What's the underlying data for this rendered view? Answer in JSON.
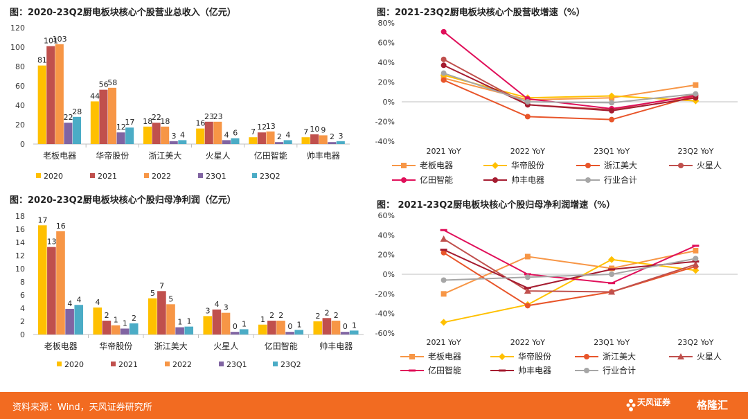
{
  "charts": [
    {
      "id": "revenue",
      "type": "bar",
      "title": "图：2020-23Q2厨电板块核心个股营业总收入（亿元）",
      "categories": [
        "老板电器",
        "华帝股份",
        "浙江美大",
        "火星人",
        "亿田智能",
        "帅丰电器"
      ],
      "ylim": [
        0,
        120
      ],
      "yticks": [
        "0",
        "20",
        "40",
        "60",
        "80",
        "100",
        "120"
      ],
      "series": [
        {
          "name": "2020",
          "color": "#ffc000",
          "values": [
            81,
            44,
            18,
            16,
            7,
            7
          ]
        },
        {
          "name": "2021",
          "color": "#c0504d",
          "values": [
            101,
            56,
            22,
            23,
            12,
            10
          ]
        },
        {
          "name": "2022",
          "color": "#f79646",
          "values": [
            103,
            58,
            18,
            23,
            13,
            9
          ]
        },
        {
          "name": "23Q1",
          "color": "#8064a2",
          "values": [
            22,
            12,
            3,
            4,
            2,
            2
          ]
        },
        {
          "name": "23Q2",
          "color": "#4bacc6",
          "values": [
            28,
            17,
            4,
            6,
            4,
            3
          ]
        }
      ]
    },
    {
      "id": "profit",
      "type": "bar",
      "title": "图：2020-23Q2厨电板块核心个股归母净利润（亿元）",
      "categories": [
        "老板电器",
        "华帝股份",
        "浙江美大",
        "火星人",
        "亿田智能",
        "帅丰电器"
      ],
      "ylim": [
        0,
        18
      ],
      "yticks": [
        "0",
        "2",
        "4",
        "6",
        "8",
        "10",
        "12",
        "14",
        "16",
        "18"
      ],
      "series": [
        {
          "name": "2020",
          "color": "#ffc000",
          "values": [
            17,
            4,
            5,
            3,
            1,
            2
          ]
        },
        {
          "name": "2021",
          "color": "#c0504d",
          "values": [
            13,
            2,
            7,
            4,
            2,
            2
          ]
        },
        {
          "name": "2022",
          "color": "#f79646",
          "values": [
            16,
            1,
            5,
            3,
            2,
            2
          ]
        },
        {
          "name": "23Q1",
          "color": "#8064a2",
          "values": [
            4,
            1,
            1,
            0,
            0,
            0
          ]
        },
        {
          "name": "23Q2",
          "color": "#4bacc6",
          "values": [
            4,
            2,
            1,
            1,
            1,
            1
          ]
        }
      ],
      "plot_values": [
        [
          16.6,
          4.1,
          5.5,
          2.8,
          1.5,
          2.0
        ],
        [
          13.3,
          2.1,
          6.6,
          3.8,
          2.1,
          2.5
        ],
        [
          15.7,
          1.4,
          4.6,
          3.3,
          2.1,
          2.1
        ],
        [
          3.9,
          0.9,
          1.1,
          0.4,
          0.4,
          0.4
        ],
        [
          4.5,
          1.7,
          1.2,
          0.8,
          0.7,
          0.6
        ]
      ]
    },
    {
      "id": "revenue_growth",
      "type": "line",
      "title": "图：2021-23Q2厨电板块核心个股营收增速（%）",
      "categories": [
        "2021 YoY",
        "2022 YoY",
        "23Q1 YoY",
        "23Q2 YoY"
      ],
      "ylim": [
        -40,
        80
      ],
      "yticks": [
        "-40%",
        "-20%",
        "0%",
        "20%",
        "40%",
        "60%",
        "80%"
      ],
      "series": [
        {
          "name": "老板电器",
          "color": "#f79646",
          "marker": "square",
          "values": [
            24,
            2,
            4,
            17
          ]
        },
        {
          "name": "华帝股份",
          "color": "#ffc000",
          "marker": "diamond",
          "values": [
            27,
            4,
            6,
            1
          ]
        },
        {
          "name": "浙江美大",
          "color": "#e8552a",
          "marker": "circle",
          "values": [
            22,
            -15,
            -18,
            6
          ]
        },
        {
          "name": "火星人",
          "color": "#c0504d",
          "marker": "circle",
          "values": [
            43,
            -3,
            -8,
            7
          ]
        },
        {
          "name": "亿田智能",
          "color": "#e0105a",
          "marker": "circle",
          "values": [
            71,
            3,
            -7,
            6
          ]
        },
        {
          "name": "帅丰电器",
          "color": "#a51c30",
          "marker": "circle",
          "values": [
            37,
            -3,
            -9,
            4
          ]
        },
        {
          "name": "行业合计",
          "color": "#a6a6a6",
          "marker": "circle",
          "values": [
            29,
            0,
            -1,
            8
          ]
        }
      ]
    },
    {
      "id": "profit_growth",
      "type": "line",
      "title": "图：  2021-23Q2厨电板块核心个股归母净利润增速（%）",
      "categories": [
        "2021 YoY",
        "2022 YoY",
        "23Q1 YoY",
        "23Q2 YoY"
      ],
      "ylim": [
        -60,
        60
      ],
      "yticks": [
        "-60%",
        "-40%",
        "-20%",
        "0%",
        "20%",
        "40%",
        "60%"
      ],
      "series": [
        {
          "name": "老板电器",
          "color": "#f79646",
          "marker": "square",
          "values": [
            -20,
            18,
            6,
            24
          ]
        },
        {
          "name": "华帝股份",
          "color": "#ffc000",
          "marker": "diamond",
          "values": [
            -49,
            -31,
            15,
            4
          ]
        },
        {
          "name": "浙江美大",
          "color": "#e8552a",
          "marker": "circle",
          "values": [
            22,
            -32,
            -18,
            8
          ]
        },
        {
          "name": "火星人",
          "color": "#c0504d",
          "marker": "triangle",
          "values": [
            36,
            -17,
            -18,
            10
          ]
        },
        {
          "name": "亿田智能",
          "color": "#e0105a",
          "marker": "dash",
          "values": [
            45,
            0,
            -9,
            29
          ]
        },
        {
          "name": "帅丰电器",
          "color": "#a51c30",
          "marker": "dash",
          "values": [
            25,
            -14,
            5,
            13
          ]
        },
        {
          "name": "行业合计",
          "color": "#a6a6a6",
          "marker": "circle",
          "values": [
            -6,
            -3,
            0,
            16
          ]
        }
      ]
    }
  ],
  "footer": {
    "source": "资料来源：Wind，天风证券研究所",
    "logo1": "天风证券",
    "logo2": "格隆汇"
  }
}
